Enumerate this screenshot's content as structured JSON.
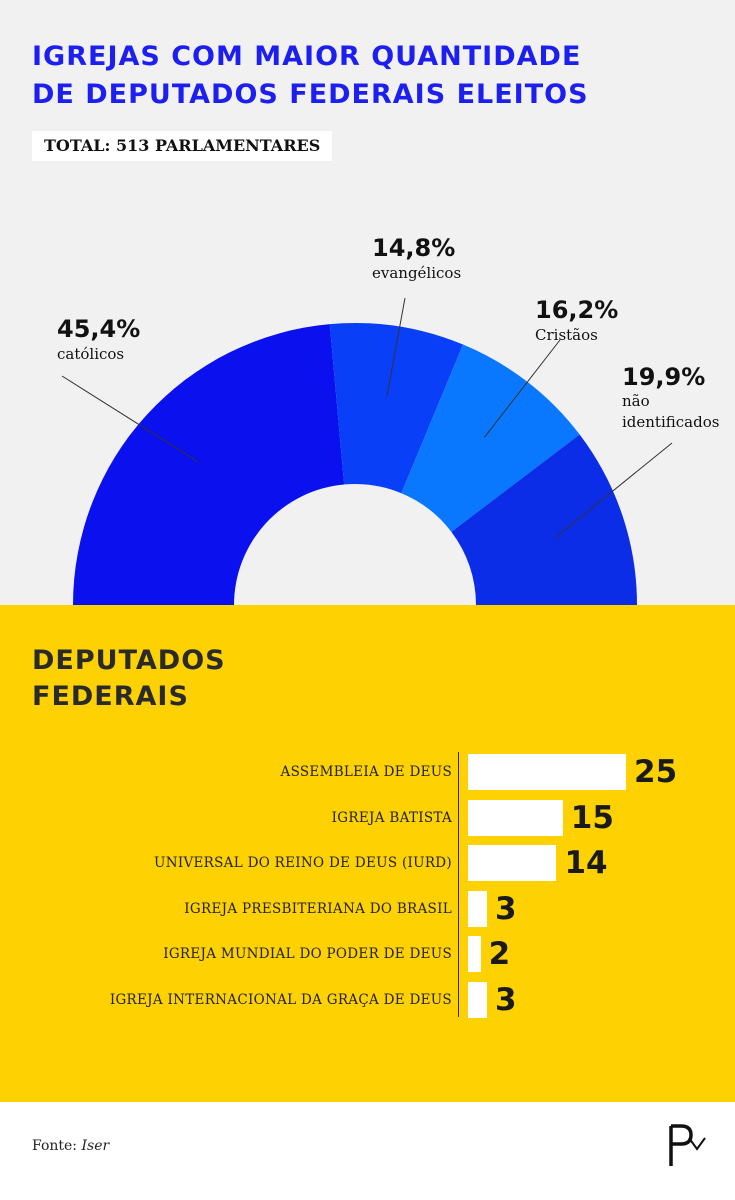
{
  "title_line1": "IGREJAS COM MAIOR QUANTIDADE",
  "title_line2": "DE DEPUTADOS FEDERAIS ELEITOS",
  "total_badge": "TOTAL: 513 PARLAMENTARES",
  "section_title_line1": "DEPUTADOS",
  "section_title_line2": "FEDERAIS",
  "source_label": "Fonte:",
  "source_name": "Iser",
  "colors": {
    "blue_title": "#1d1ff0",
    "donut": [
      "#0a10ee",
      "#0a3ff8",
      "#0a78fe",
      "#0c2de8"
    ],
    "yellow": "#fdd102",
    "bar": "#ffffff"
  },
  "logo_icon": "P-logo-icon",
  "chart_data": [
    {
      "type": "pie",
      "title": "",
      "slices": [
        {
          "label": "católicos",
          "value": 45.4,
          "display": "45,4%"
        },
        {
          "label": "evangélicos",
          "value": 14.8,
          "display": "14,8%"
        },
        {
          "label": "Cristãos",
          "value": 16.2,
          "display": "16,2%"
        },
        {
          "label": "não identificados",
          "value": 19.9,
          "display": "19,9%"
        }
      ]
    },
    {
      "type": "bar",
      "orientation": "horizontal",
      "title": "DEPUTADOS FEDERAIS",
      "categories": [
        "ASSEMBLEIA DE DEUS",
        "IGREJA BATISTA",
        "UNIVERSAL DO REINO DE DEUS (IURD)",
        "IGREJA PRESBITERIANA DO BRASIL",
        "IGREJA MUNDIAL DO PODER DE DEUS",
        "IGREJA INTERNACIONAL DA GRAÇA DE DEUS"
      ],
      "values": [
        25,
        15,
        14,
        3,
        2,
        3
      ],
      "xlim": [
        0,
        25
      ]
    }
  ]
}
